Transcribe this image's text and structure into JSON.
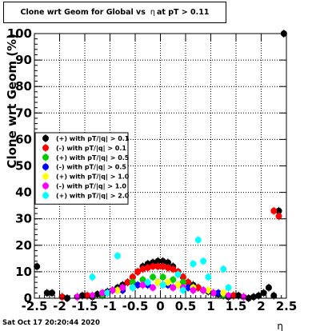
{
  "chart_data": {
    "type": "scatter",
    "title_prefix": "Clone wrt Geom for Global vs",
    "title_symbol": "η",
    "title_suffix": "at pT > 0.11",
    "xlabel": "η",
    "ylabel": "Clone wrt Geom (%)",
    "xlim": [
      -2.5,
      2.5
    ],
    "ylim": [
      0,
      100
    ],
    "x_ticks": [
      "-2.5",
      "-2",
      "-1.5",
      "-1",
      "-0.5",
      "0",
      "0.5",
      "1",
      "1.5",
      "2",
      "2.5"
    ],
    "y_ticks": [
      "0",
      "10",
      "20",
      "30",
      "40",
      "50",
      "60",
      "70",
      "80",
      "90",
      "100"
    ],
    "grid": true,
    "legend_position": "left-middle",
    "series": [
      {
        "name": "(+) with pT/|q| > 0.1",
        "color": "#000000",
        "x": [
          -2.45,
          -2.25,
          -2.15,
          -1.95,
          -1.85,
          -1.65,
          -1.55,
          -1.45,
          -1.35,
          -1.25,
          -1.15,
          -1.05,
          -0.95,
          -0.85,
          -0.75,
          -0.65,
          -0.55,
          -0.45,
          -0.35,
          -0.25,
          -0.15,
          -0.05,
          0.05,
          0.15,
          0.25,
          0.35,
          0.45,
          0.55,
          0.65,
          0.75,
          0.85,
          0.95,
          1.05,
          1.15,
          1.25,
          1.35,
          1.45,
          1.55,
          1.65,
          1.75,
          1.85,
          1.95,
          2.05,
          2.15,
          2.25,
          2.35,
          2.45
        ],
        "y": [
          12,
          2,
          2,
          0.5,
          0,
          0.5,
          1,
          1,
          0.5,
          1.5,
          2,
          2.5,
          3,
          4,
          5,
          6,
          8,
          10,
          12,
          13,
          13.5,
          14,
          14,
          13.5,
          12,
          10,
          8,
          6,
          5,
          4,
          3,
          2.5,
          2,
          1.5,
          1,
          0.5,
          1,
          1,
          0.5,
          0,
          0.5,
          1,
          2,
          4,
          1,
          33,
          100
        ]
      },
      {
        "name": "(-) with pT/|q| > 0.1",
        "color": "#ff0000",
        "x": [
          -1.95,
          -1.45,
          -1.05,
          -0.85,
          -0.75,
          -0.65,
          -0.55,
          -0.45,
          -0.35,
          -0.25,
          -0.15,
          -0.05,
          0.05,
          0.15,
          0.25,
          0.35,
          0.45,
          0.55,
          0.75,
          1.05,
          1.45,
          2.25,
          2.35
        ],
        "y": [
          0.5,
          1,
          2,
          3,
          4,
          6,
          8,
          10,
          11,
          11.5,
          12,
          12,
          12,
          11.5,
          11,
          10,
          8,
          6,
          4,
          2,
          1,
          33,
          31
        ]
      },
      {
        "name": "(+) with pT/|q| > 0.5",
        "color": "#00cc00",
        "x": [
          -1.15,
          -0.85,
          -0.75,
          -0.55,
          -0.35,
          -0.15,
          0.05,
          0.25,
          0.45,
          0.65,
          0.85,
          1.05,
          1.25
        ],
        "y": [
          1,
          3,
          4,
          6,
          7,
          8,
          8,
          7,
          6,
          4,
          3,
          2,
          1
        ]
      },
      {
        "name": "(-) with pT/|q| > 0.5",
        "color": "#0000ff",
        "x": [
          -1.05,
          -0.75,
          -0.45,
          -0.25,
          -0.05,
          0.15,
          0.35,
          0.55,
          0.85,
          1.15
        ],
        "y": [
          2,
          3,
          5,
          5,
          6,
          5,
          5,
          4,
          3,
          2
        ]
      },
      {
        "name": "(+) with pT/|q| > 1.0",
        "color": "#ffff00",
        "x": [
          -1.15,
          -0.85,
          -0.55,
          -0.35,
          -0.05,
          0.15,
          0.35,
          0.65,
          0.95,
          1.25
        ],
        "y": [
          2,
          3,
          4,
          5,
          6,
          6,
          5,
          4,
          3,
          2
        ]
      },
      {
        "name": "(-) with pT/|q| > 1.0",
        "color": "#ff00ff",
        "x": [
          -1.65,
          -1.35,
          -1.15,
          -0.95,
          -0.75,
          -0.55,
          -0.35,
          -0.15,
          0.05,
          0.25,
          0.45,
          0.65,
          0.85,
          1.05,
          1.35,
          1.65
        ],
        "y": [
          0.5,
          1,
          2,
          3,
          4,
          4,
          5,
          4,
          5,
          4,
          4,
          3,
          3,
          2,
          1,
          0.5
        ]
      },
      {
        "name": "(+) with pT/|q| > 2.0",
        "color": "#00ffff",
        "x": [
          -1.35,
          -1.05,
          -0.85,
          -0.55,
          -0.25,
          0.05,
          0.35,
          0.45,
          0.65,
          0.75,
          0.85,
          0.95,
          1.25,
          1.35
        ],
        "y": [
          8,
          2,
          16,
          4,
          6,
          5,
          9,
          3,
          13,
          22,
          14,
          8,
          11,
          4
        ]
      }
    ],
    "date_label": "Sat Oct 17 20:20:44 2020"
  }
}
